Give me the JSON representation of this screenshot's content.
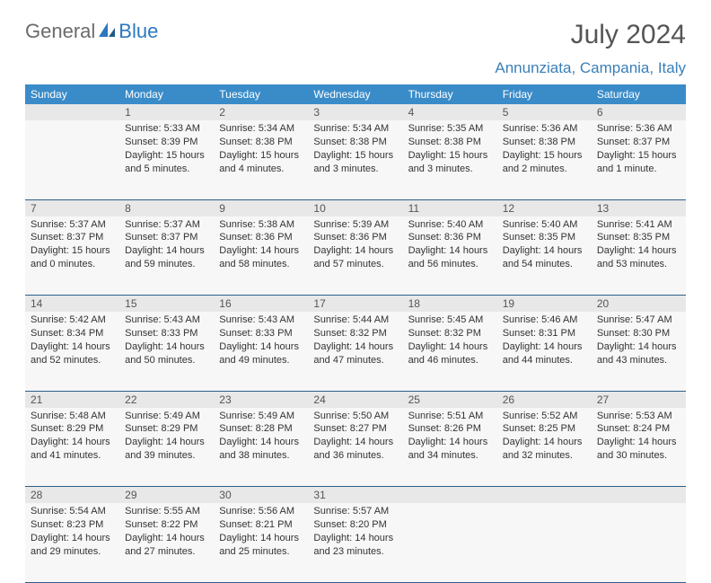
{
  "brand": {
    "text_general": "General",
    "text_blue": "Blue"
  },
  "header": {
    "month_title": "July 2024",
    "location": "Annunziata, Campania, Italy"
  },
  "colors": {
    "header_bg": "#3a8cc9",
    "header_text": "#ffffff",
    "daynum_bg": "#e8e8e8",
    "cell_bg": "#f7f7f7",
    "row_divider": "#2d5f8a",
    "title_text": "#555555",
    "location_text": "#3a7fb8",
    "logo_gray": "#6b6b6b",
    "logo_blue": "#2c78bf"
  },
  "typography": {
    "month_title_size": 30,
    "location_size": 17,
    "dayname_size": 12,
    "daynum_size": 12,
    "cell_size": 11
  },
  "day_names": [
    "Sunday",
    "Monday",
    "Tuesday",
    "Wednesday",
    "Thursday",
    "Friday",
    "Saturday"
  ],
  "weeks": [
    [
      null,
      {
        "n": "1",
        "sr": "Sunrise: 5:33 AM",
        "ss": "Sunset: 8:39 PM",
        "d1": "Daylight: 15 hours",
        "d2": "and 5 minutes."
      },
      {
        "n": "2",
        "sr": "Sunrise: 5:34 AM",
        "ss": "Sunset: 8:38 PM",
        "d1": "Daylight: 15 hours",
        "d2": "and 4 minutes."
      },
      {
        "n": "3",
        "sr": "Sunrise: 5:34 AM",
        "ss": "Sunset: 8:38 PM",
        "d1": "Daylight: 15 hours",
        "d2": "and 3 minutes."
      },
      {
        "n": "4",
        "sr": "Sunrise: 5:35 AM",
        "ss": "Sunset: 8:38 PM",
        "d1": "Daylight: 15 hours",
        "d2": "and 3 minutes."
      },
      {
        "n": "5",
        "sr": "Sunrise: 5:36 AM",
        "ss": "Sunset: 8:38 PM",
        "d1": "Daylight: 15 hours",
        "d2": "and 2 minutes."
      },
      {
        "n": "6",
        "sr": "Sunrise: 5:36 AM",
        "ss": "Sunset: 8:37 PM",
        "d1": "Daylight: 15 hours",
        "d2": "and 1 minute."
      }
    ],
    [
      {
        "n": "7",
        "sr": "Sunrise: 5:37 AM",
        "ss": "Sunset: 8:37 PM",
        "d1": "Daylight: 15 hours",
        "d2": "and 0 minutes."
      },
      {
        "n": "8",
        "sr": "Sunrise: 5:37 AM",
        "ss": "Sunset: 8:37 PM",
        "d1": "Daylight: 14 hours",
        "d2": "and 59 minutes."
      },
      {
        "n": "9",
        "sr": "Sunrise: 5:38 AM",
        "ss": "Sunset: 8:36 PM",
        "d1": "Daylight: 14 hours",
        "d2": "and 58 minutes."
      },
      {
        "n": "10",
        "sr": "Sunrise: 5:39 AM",
        "ss": "Sunset: 8:36 PM",
        "d1": "Daylight: 14 hours",
        "d2": "and 57 minutes."
      },
      {
        "n": "11",
        "sr": "Sunrise: 5:40 AM",
        "ss": "Sunset: 8:36 PM",
        "d1": "Daylight: 14 hours",
        "d2": "and 56 minutes."
      },
      {
        "n": "12",
        "sr": "Sunrise: 5:40 AM",
        "ss": "Sunset: 8:35 PM",
        "d1": "Daylight: 14 hours",
        "d2": "and 54 minutes."
      },
      {
        "n": "13",
        "sr": "Sunrise: 5:41 AM",
        "ss": "Sunset: 8:35 PM",
        "d1": "Daylight: 14 hours",
        "d2": "and 53 minutes."
      }
    ],
    [
      {
        "n": "14",
        "sr": "Sunrise: 5:42 AM",
        "ss": "Sunset: 8:34 PM",
        "d1": "Daylight: 14 hours",
        "d2": "and 52 minutes."
      },
      {
        "n": "15",
        "sr": "Sunrise: 5:43 AM",
        "ss": "Sunset: 8:33 PM",
        "d1": "Daylight: 14 hours",
        "d2": "and 50 minutes."
      },
      {
        "n": "16",
        "sr": "Sunrise: 5:43 AM",
        "ss": "Sunset: 8:33 PM",
        "d1": "Daylight: 14 hours",
        "d2": "and 49 minutes."
      },
      {
        "n": "17",
        "sr": "Sunrise: 5:44 AM",
        "ss": "Sunset: 8:32 PM",
        "d1": "Daylight: 14 hours",
        "d2": "and 47 minutes."
      },
      {
        "n": "18",
        "sr": "Sunrise: 5:45 AM",
        "ss": "Sunset: 8:32 PM",
        "d1": "Daylight: 14 hours",
        "d2": "and 46 minutes."
      },
      {
        "n": "19",
        "sr": "Sunrise: 5:46 AM",
        "ss": "Sunset: 8:31 PM",
        "d1": "Daylight: 14 hours",
        "d2": "and 44 minutes."
      },
      {
        "n": "20",
        "sr": "Sunrise: 5:47 AM",
        "ss": "Sunset: 8:30 PM",
        "d1": "Daylight: 14 hours",
        "d2": "and 43 minutes."
      }
    ],
    [
      {
        "n": "21",
        "sr": "Sunrise: 5:48 AM",
        "ss": "Sunset: 8:29 PM",
        "d1": "Daylight: 14 hours",
        "d2": "and 41 minutes."
      },
      {
        "n": "22",
        "sr": "Sunrise: 5:49 AM",
        "ss": "Sunset: 8:29 PM",
        "d1": "Daylight: 14 hours",
        "d2": "and 39 minutes."
      },
      {
        "n": "23",
        "sr": "Sunrise: 5:49 AM",
        "ss": "Sunset: 8:28 PM",
        "d1": "Daylight: 14 hours",
        "d2": "and 38 minutes."
      },
      {
        "n": "24",
        "sr": "Sunrise: 5:50 AM",
        "ss": "Sunset: 8:27 PM",
        "d1": "Daylight: 14 hours",
        "d2": "and 36 minutes."
      },
      {
        "n": "25",
        "sr": "Sunrise: 5:51 AM",
        "ss": "Sunset: 8:26 PM",
        "d1": "Daylight: 14 hours",
        "d2": "and 34 minutes."
      },
      {
        "n": "26",
        "sr": "Sunrise: 5:52 AM",
        "ss": "Sunset: 8:25 PM",
        "d1": "Daylight: 14 hours",
        "d2": "and 32 minutes."
      },
      {
        "n": "27",
        "sr": "Sunrise: 5:53 AM",
        "ss": "Sunset: 8:24 PM",
        "d1": "Daylight: 14 hours",
        "d2": "and 30 minutes."
      }
    ],
    [
      {
        "n": "28",
        "sr": "Sunrise: 5:54 AM",
        "ss": "Sunset: 8:23 PM",
        "d1": "Daylight: 14 hours",
        "d2": "and 29 minutes."
      },
      {
        "n": "29",
        "sr": "Sunrise: 5:55 AM",
        "ss": "Sunset: 8:22 PM",
        "d1": "Daylight: 14 hours",
        "d2": "and 27 minutes."
      },
      {
        "n": "30",
        "sr": "Sunrise: 5:56 AM",
        "ss": "Sunset: 8:21 PM",
        "d1": "Daylight: 14 hours",
        "d2": "and 25 minutes."
      },
      {
        "n": "31",
        "sr": "Sunrise: 5:57 AM",
        "ss": "Sunset: 8:20 PM",
        "d1": "Daylight: 14 hours",
        "d2": "and 23 minutes."
      },
      null,
      null,
      null
    ]
  ]
}
